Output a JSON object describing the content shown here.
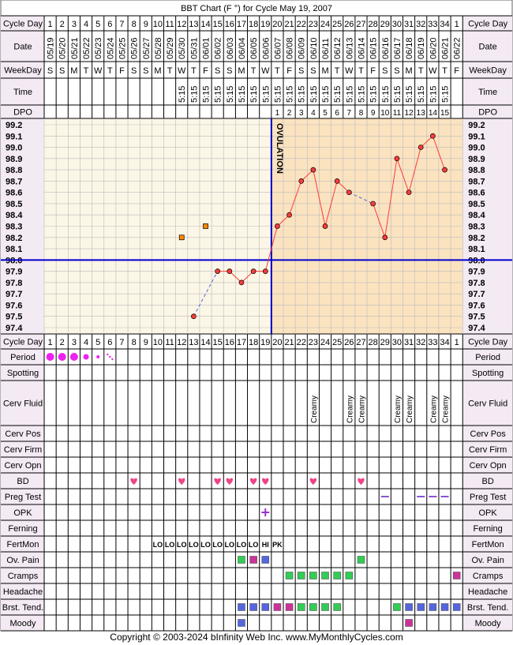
{
  "title": "BBT Chart (F °) for Cycle May 19, 2007",
  "copyright": "Copyright © 2003-2024 bInfinity Web Inc.     www.MyMonthlyCycles.com",
  "labels": {
    "cycle_day": "Cycle Day",
    "date": "Date",
    "weekday": "WeekDay",
    "time": "Time",
    "dpo": "DPO",
    "period": "Period",
    "spotting": "Spotting",
    "cerv_fluid": "Cerv Fluid",
    "cerv_pos": "Cerv Pos",
    "cerv_firm": "Cerv Firm",
    "cerv_opn": "Cerv Opn",
    "bd": "BD",
    "preg_test": "Preg Test",
    "opk": "OPK",
    "ferning": "Ferning",
    "fertmon": "FertMon",
    "ov_pain": "Ov. Pain",
    "cramps": "Cramps",
    "headache": "Headache",
    "brst_tend": "Brst. Tend.",
    "moody": "Moody"
  },
  "colors": {
    "pre_bg": "#fbf6e6",
    "post_bg": "#fbe3c0",
    "line": "#ff3b3b",
    "point": "#ff3b3b",
    "coverline": "#0000cc",
    "ovulation": "#0000cc",
    "period": "#ee22ee",
    "heart": "#ee4488",
    "opk": "#9933cc",
    "preg": "#8855cc",
    "fertmon": "#007700",
    "green_box": "#33cc55",
    "purple_box": "#cc3399",
    "blue_box": "#5566dd"
  },
  "cycle_days": [
    "1",
    "2",
    "3",
    "4",
    "5",
    "6",
    "7",
    "8",
    "9",
    "10",
    "11",
    "12",
    "13",
    "14",
    "15",
    "16",
    "17",
    "18",
    "19",
    "20",
    "21",
    "22",
    "23",
    "24",
    "25",
    "26",
    "27",
    "28",
    "29",
    "30",
    "31",
    "32",
    "33",
    "34",
    "1"
  ],
  "dates": [
    "05/19",
    "05/20",
    "05/21",
    "05/22",
    "05/23",
    "05/24",
    "05/25",
    "05/26",
    "05/27",
    "05/28",
    "05/29",
    "05/30",
    "05/31",
    "06/01",
    "06/02",
    "06/03",
    "06/04",
    "06/05",
    "06/06",
    "06/07",
    "06/08",
    "06/09",
    "06/10",
    "06/11",
    "06/12",
    "06/13",
    "06/14",
    "06/15",
    "06/16",
    "06/17",
    "06/18",
    "06/19",
    "06/20",
    "06/21",
    "06/22"
  ],
  "weekdays": [
    "S",
    "S",
    "M",
    "T",
    "W",
    "T",
    "F",
    "S",
    "S",
    "M",
    "T",
    "W",
    "T",
    "F",
    "S",
    "S",
    "M",
    "T",
    "W",
    "T",
    "F",
    "S",
    "S",
    "M",
    "T",
    "W",
    "T",
    "F",
    "S",
    "S",
    "M",
    "T",
    "W",
    "T",
    "F"
  ],
  "times": [
    "",
    "",
    "",
    "",
    "",
    "",
    "",
    "",
    "",
    "",
    "",
    "5:15",
    "5:15",
    "5:15",
    "5:15",
    "5:15",
    "5:15",
    "5:15",
    "5:15",
    "5:15",
    "5:15",
    "5:15",
    "5:15",
    "5:15",
    "5:15",
    "5:15",
    "5:15",
    "5:15",
    "5:15",
    "5:15",
    "5:15",
    "5:15",
    "5:15",
    "5:15",
    ""
  ],
  "dpo": [
    "",
    "",
    "",
    "",
    "",
    "",
    "",
    "",
    "",
    "",
    "",
    "",
    "",
    "",
    "",
    "",
    "",
    "",
    "",
    "1",
    "2",
    "3",
    "4",
    "5",
    "6",
    "7",
    "8",
    "9",
    "10",
    "11",
    "12",
    "13",
    "14",
    "15",
    ""
  ],
  "chart_data": {
    "type": "line",
    "x": [
      12,
      13,
      14,
      15,
      16,
      17,
      18,
      19,
      20,
      21,
      22,
      23,
      24,
      25,
      26,
      27,
      28,
      29,
      30,
      31,
      32,
      33,
      34
    ],
    "y": [
      98.2,
      97.5,
      98.3,
      97.9,
      97.9,
      97.8,
      97.9,
      97.9,
      98.3,
      98.4,
      98.7,
      98.8,
      98.3,
      98.7,
      98.6,
      null,
      98.5,
      98.2,
      98.9,
      98.6,
      99.0,
      99.1,
      98.8
    ],
    "discarded": [
      12,
      14
    ],
    "dashed_segments": [
      [
        13,
        15
      ],
      [
        26,
        28
      ]
    ],
    "coverline": 98.0,
    "ovulation_day": 19,
    "ovulation_label": "OVULATION",
    "ylim": [
      97.4,
      99.2
    ],
    "y_ticks": [
      "99.2",
      "99.1",
      "99.0",
      "98.9",
      "98.8",
      "98.7",
      "98.6",
      "98.5",
      "98.4",
      "98.3",
      "98.2",
      "98.1",
      "98.0",
      "97.9",
      "97.8",
      "97.7",
      "97.6",
      "97.5",
      "97.4"
    ],
    "grid": true
  },
  "period": [
    {
      "day": 1,
      "size": "large"
    },
    {
      "day": 2,
      "size": "large"
    },
    {
      "day": 3,
      "size": "large"
    },
    {
      "day": 4,
      "size": "medium"
    },
    {
      "day": 5,
      "size": "small"
    },
    {
      "day": 6,
      "size": "spotting"
    }
  ],
  "cerv_fluid": [
    {
      "day": 23,
      "text": "Creamy"
    },
    {
      "day": 26,
      "text": "Creamy"
    },
    {
      "day": 27,
      "text": "Creamy"
    },
    {
      "day": 30,
      "text": "Creamy"
    },
    {
      "day": 31,
      "text": "Creamy"
    },
    {
      "day": 33,
      "text": "Creamy"
    },
    {
      "day": 34,
      "text": "Creamy"
    }
  ],
  "bd_days": [
    8,
    12,
    15,
    16,
    18,
    19,
    23,
    27
  ],
  "preg_test_days": [
    29,
    32,
    33,
    34
  ],
  "opk_days": [
    19
  ],
  "fertmon": [
    {
      "day": 10,
      "text": "LO"
    },
    {
      "day": 11,
      "text": "LO"
    },
    {
      "day": 12,
      "text": "LO"
    },
    {
      "day": 13,
      "text": "LO"
    },
    {
      "day": 14,
      "text": "LO"
    },
    {
      "day": 15,
      "text": "LO"
    },
    {
      "day": 16,
      "text": "LO"
    },
    {
      "day": 17,
      "text": "LO"
    },
    {
      "day": 18,
      "text": "LO"
    },
    {
      "day": 19,
      "text": "HI"
    },
    {
      "day": 20,
      "text": "PK"
    }
  ],
  "ov_pain": [
    {
      "day": 17,
      "color": "green"
    },
    {
      "day": 18,
      "color": "purple"
    },
    {
      "day": 19,
      "color": "blue"
    },
    {
      "day": 27,
      "color": "green"
    }
  ],
  "cramps": [
    {
      "day": 21,
      "color": "green"
    },
    {
      "day": 22,
      "color": "green"
    },
    {
      "day": 23,
      "color": "green"
    },
    {
      "day": 24,
      "color": "green"
    },
    {
      "day": 25,
      "color": "green"
    },
    {
      "day": 26,
      "color": "green"
    },
    {
      "day": 35,
      "color": "purple"
    }
  ],
  "brst_tend": [
    {
      "day": 17,
      "color": "blue"
    },
    {
      "day": 18,
      "color": "blue"
    },
    {
      "day": 19,
      "color": "blue"
    },
    {
      "day": 20,
      "color": "purple"
    },
    {
      "day": 21,
      "color": "purple"
    },
    {
      "day": 22,
      "color": "green"
    },
    {
      "day": 23,
      "color": "green"
    },
    {
      "day": 24,
      "color": "green"
    },
    {
      "day": 25,
      "color": "green"
    },
    {
      "day": 30,
      "color": "green"
    },
    {
      "day": 31,
      "color": "blue"
    },
    {
      "day": 32,
      "color": "blue"
    },
    {
      "day": 33,
      "color": "blue"
    },
    {
      "day": 34,
      "color": "blue"
    },
    {
      "day": 35,
      "color": "blue"
    }
  ],
  "moody": [
    {
      "day": 17,
      "color": "blue"
    },
    {
      "day": 31,
      "color": "purple"
    }
  ]
}
